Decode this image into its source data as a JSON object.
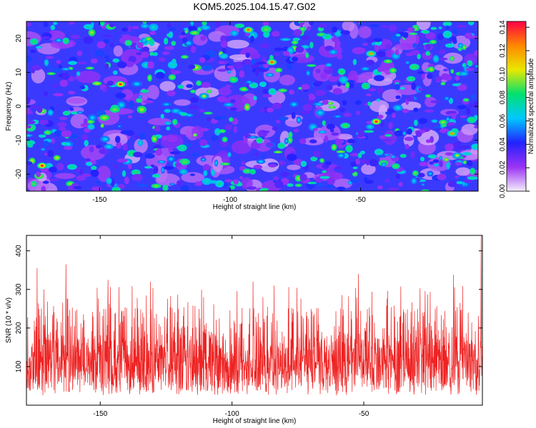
{
  "title": "KOM5.2025.104.15.47.G02",
  "colors": {
    "snr_line": "#ee2222",
    "colorbar_stops": [
      "#f4eefc",
      "#9a33f4",
      "#2222ff",
      "#00c8ff",
      "#00e070",
      "#e8e800",
      "#ff8800",
      "#ff0044"
    ]
  },
  "chart_data": [
    {
      "type": "heatmap",
      "title": "KOM5.2025.104.15.47.G02",
      "xlabel": "Height of straight line (km)",
      "ylabel": "Frequency (Hz)",
      "colorbar_label": "Normalized spectral amplitude",
      "xlim": [
        -178,
        -5
      ],
      "ylim": [
        -25,
        25
      ],
      "x_ticks": [
        -150,
        -100,
        -50
      ],
      "x_tick_labels": [
        "-150",
        "-100",
        "-50"
      ],
      "y_ticks": [
        -20,
        -10,
        0,
        10,
        20
      ],
      "y_tick_labels": [
        "-20",
        "-10",
        "0",
        "10",
        "20"
      ],
      "color_range": [
        0,
        0.145
      ],
      "colorbar_ticks": [
        0,
        0.02,
        0.04,
        0.06,
        0.08,
        0.1,
        0.12,
        0.14
      ],
      "colorbar_tick_labels": [
        "0.00",
        "0.02",
        "0.04",
        "0.06",
        "0.08",
        "0.10",
        "0.12",
        "0.14"
      ],
      "grid": false,
      "hot_spots": [
        {
          "x": -172,
          "y": -17.5,
          "z": 0.14
        },
        {
          "x": -142,
          "y": 6.5,
          "z": 0.14
        },
        {
          "x": -93,
          "y": 22.5,
          "z": 0.13
        },
        {
          "x": -84,
          "y": 13,
          "z": 0.13
        },
        {
          "x": -44,
          "y": -4.5,
          "z": 0.14
        },
        {
          "x": -46,
          "y": 15.5,
          "z": 0.12
        },
        {
          "x": -15,
          "y": -8,
          "z": 0.12
        },
        {
          "x": -110,
          "y": 3,
          "z": 0.1
        },
        {
          "x": -13,
          "y": -14.5,
          "z": 0.1
        }
      ]
    },
    {
      "type": "line",
      "xlabel": "Height of straight line (km)",
      "ylabel": "SNR (10 * v/v)",
      "xlim": [
        -178,
        -5
      ],
      "ylim": [
        0,
        440
      ],
      "x_ticks": [
        -150,
        -100,
        -50
      ],
      "x_tick_labels": [
        "-150",
        "-100",
        "-50"
      ],
      "y_ticks": [
        100,
        200,
        300,
        400
      ],
      "y_tick_labels": [
        "100",
        "200",
        "300",
        "400"
      ],
      "grid": false,
      "baseline_mean": 118,
      "typical_range": [
        20,
        250
      ],
      "peaks": [
        {
          "x": -174,
          "y": 355
        },
        {
          "x": -163,
          "y": 365
        },
        {
          "x": -147,
          "y": 325
        },
        {
          "x": -131,
          "y": 320
        },
        {
          "x": -92,
          "y": 320
        },
        {
          "x": -84,
          "y": 310
        },
        {
          "x": -52,
          "y": 340
        },
        {
          "x": -16,
          "y": 338
        },
        {
          "x": -5.5,
          "y": 440
        }
      ]
    }
  ]
}
